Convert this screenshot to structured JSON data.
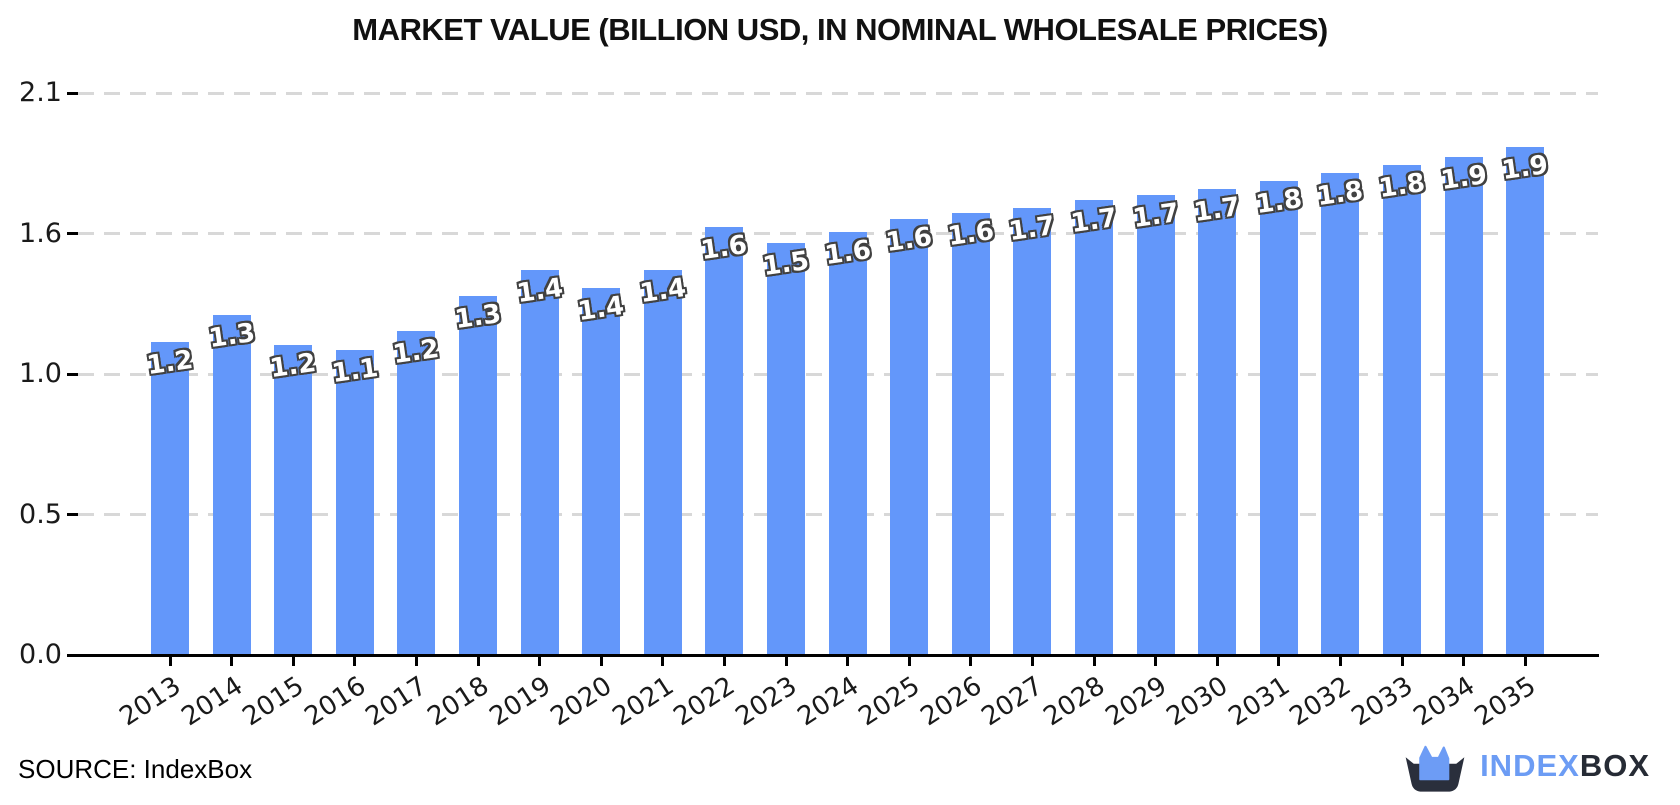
{
  "title": "MARKET VALUE (BILLION USD, IN NOMINAL WHOLESALE PRICES)",
  "source": "SOURCE: IndexBox",
  "logo": {
    "brand_primary": "INDEX",
    "brand_secondary": "BOX",
    "color_primary": "#6C9CF4",
    "color_secondary": "#262B35",
    "icon_box_color": "#2A2F3C",
    "icon_crown_color": "#6D9CF5"
  },
  "colors": {
    "bar": "#6397FA",
    "grid": "#d8d8d8",
    "axis": "#000000",
    "bar_label_fill": "#ffffff",
    "bar_label_outline": "#414141",
    "tick_text": "#1a1a1a"
  },
  "chart_data": {
    "type": "bar",
    "title": "MARKET VALUE (BILLION USD, IN NOMINAL WHOLESALE PRICES)",
    "xlabel": "",
    "ylabel": "",
    "categories": [
      "2013",
      "2014",
      "2015",
      "2016",
      "2017",
      "2018",
      "2019",
      "2020",
      "2021",
      "2022",
      "2023",
      "2024",
      "2025",
      "2026",
      "2027",
      "2028",
      "2029",
      "2030",
      "2031",
      "2032",
      "2033",
      "2034",
      "2035"
    ],
    "values": [
      1.2,
      1.3,
      1.2,
      1.1,
      1.2,
      1.3,
      1.4,
      1.4,
      1.4,
      1.6,
      1.5,
      1.6,
      1.6,
      1.6,
      1.7,
      1.7,
      1.7,
      1.7,
      1.8,
      1.8,
      1.8,
      1.9,
      1.9
    ],
    "values_estimated_precise": [
      1.17,
      1.27,
      1.16,
      1.14,
      1.21,
      1.34,
      1.44,
      1.37,
      1.44,
      1.6,
      1.54,
      1.58,
      1.63,
      1.65,
      1.67,
      1.7,
      1.72,
      1.74,
      1.77,
      1.8,
      1.83,
      1.86,
      1.9
    ],
    "data_label_decimals": 1,
    "ylim": [
      0,
      2.1
    ],
    "yticks": [
      {
        "label": "0.0",
        "value": 0.0
      },
      {
        "label": "0.5",
        "value": 0.525
      },
      {
        "label": "1.0",
        "value": 1.05
      },
      {
        "label": "1.6",
        "value": 1.575
      },
      {
        "label": "2.1",
        "value": 2.1
      }
    ],
    "grid": "horizontal dashed",
    "legend": "none",
    "bar_color": "#6397FA"
  }
}
